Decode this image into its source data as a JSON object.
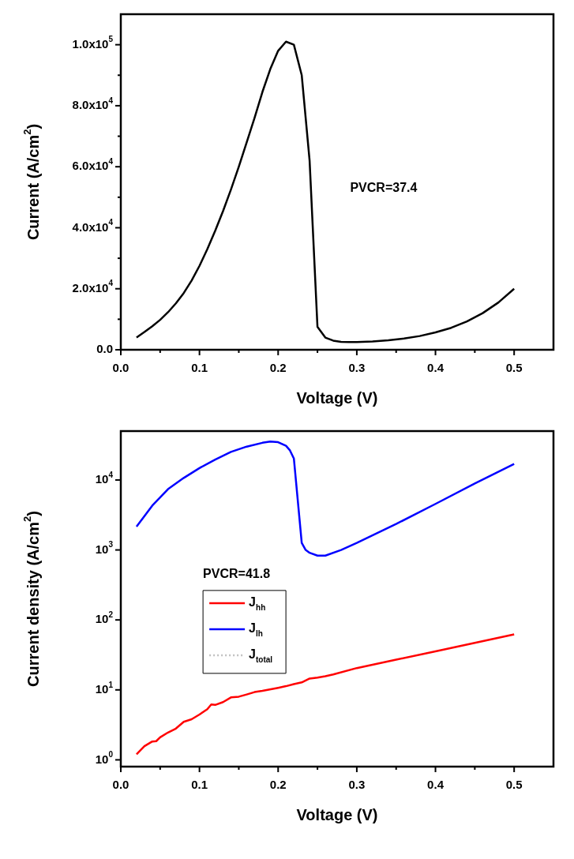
{
  "chart_data": [
    {
      "type": "line",
      "xlabel": "Voltage (V)",
      "ylabel": "Current (A/cm$^{2}$)",
      "annotations": [
        "PVCR=37.4"
      ],
      "x": [
        0.02,
        0.03,
        0.04,
        0.05,
        0.06,
        0.07,
        0.08,
        0.09,
        0.1,
        0.11,
        0.12,
        0.13,
        0.14,
        0.15,
        0.16,
        0.17,
        0.18,
        0.19,
        0.2,
        0.21,
        0.22,
        0.23,
        0.24,
        0.25,
        0.26,
        0.27,
        0.28,
        0.29,
        0.3,
        0.32,
        0.34,
        0.36,
        0.38,
        0.4,
        0.42,
        0.44,
        0.46,
        0.48,
        0.5
      ],
      "series": [
        {
          "color": "#000000",
          "values": [
            4000,
            5800,
            7700,
            9800,
            12300,
            15200,
            18600,
            22700,
            27500,
            33000,
            39000,
            45500,
            52500,
            60000,
            68000,
            76000,
            84500,
            92000,
            98000,
            101000,
            100000,
            90000,
            62000,
            7500,
            4000,
            3000,
            2600,
            2500,
            2500,
            2700,
            3100,
            3700,
            4500,
            5700,
            7200,
            9300,
            12000,
            15500,
            20000
          ]
        }
      ],
      "xlim": [
        0,
        0.55
      ],
      "xticks": [
        {
          "value": 0,
          "label": "0.0"
        },
        {
          "value": 0.05,
          "label": null
        },
        0.1,
        {
          "value": 0.15,
          "label": null
        },
        0.2,
        {
          "value": 0.25,
          "label": null
        },
        0.3,
        {
          "value": 0.35,
          "label": null
        },
        0.4,
        {
          "value": 0.45,
          "label": null
        },
        0.5
      ],
      "ylim": [
        0,
        110000
      ],
      "yticks": [
        {
          "value": 0,
          "label": "0.0"
        },
        {
          "value": 10000,
          "label": null
        },
        {
          "value": 20000,
          "label": "2.0x10$^{4}$"
        },
        {
          "value": 30000,
          "label": null
        },
        {
          "value": 40000,
          "label": "4.0x10$^{4}$"
        },
        {
          "value": 50000,
          "label": null
        },
        {
          "value": 60000,
          "label": "6.0x10$^{4}$"
        },
        {
          "value": 70000,
          "label": null
        },
        {
          "value": 80000,
          "label": "8.0x10$^{4}$"
        },
        {
          "value": 90000,
          "label": null
        },
        {
          "value": 100000,
          "label": "1.0x10$^{5}$"
        }
      ]
    },
    {
      "type": "line",
      "xlabel": "Voltage (V)",
      "ylabel": "Current density (A/cm$^{2}$)",
      "annotations": [
        "PVCR=41.8"
      ],
      "log": "y",
      "legend": "left",
      "series": [
        {
          "name": "J$_{hh}$",
          "color": "#ff0000",
          "x": [
            0.02,
            0.03,
            0.04,
            0.045,
            0.05,
            0.06,
            0.07,
            0.08,
            0.09,
            0.1,
            0.11,
            0.115,
            0.12,
            0.13,
            0.14,
            0.15,
            0.16,
            0.17,
            0.18,
            0.2,
            0.21,
            0.22,
            0.23,
            0.24,
            0.25,
            0.26,
            0.27,
            0.3,
            0.35,
            0.4,
            0.45,
            0.5
          ],
          "values": [
            1.2,
            1.57,
            1.83,
            1.85,
            2.1,
            2.46,
            2.8,
            3.5,
            3.8,
            4.45,
            5.3,
            6.2,
            6.1,
            6.7,
            7.8,
            8,
            8.6,
            9.3,
            9.7,
            10.7,
            11.3,
            12.1,
            12.8,
            14.5,
            15,
            15.7,
            16.6,
            20.5,
            27,
            35.6,
            47,
            62
          ]
        },
        {
          "name": "J$_{lh}$",
          "color": "#0000ff",
          "x": [
            0.02,
            0.04,
            0.06,
            0.08,
            0.1,
            0.12,
            0.14,
            0.16,
            0.18,
            0.19,
            0.2,
            0.21,
            0.215,
            0.22,
            0.23,
            0.235,
            0.24,
            0.25,
            0.26,
            0.28,
            0.3,
            0.35,
            0.4,
            0.45,
            0.5
          ],
          "values": [
            2150,
            4300,
            7400,
            10700,
            14800,
            19600,
            25200,
            30000,
            34000,
            35400,
            34700,
            30800,
            26500,
            20300,
            1260,
            1000,
            910,
            830,
            830,
            1000,
            1260,
            2350,
            4550,
            8900,
            17000
          ]
        },
        {
          "name": "J$_{total}$",
          "color": "#c0c0c0",
          "line_style": "dotted"
        }
      ],
      "xlim": [
        0,
        0.55
      ],
      "xticks": [
        {
          "value": 0,
          "label": "0.0"
        },
        {
          "value": 0.05,
          "label": null
        },
        0.1,
        {
          "value": 0.15,
          "label": null
        },
        0.2,
        {
          "value": 0.25,
          "label": null
        },
        0.3,
        {
          "value": 0.35,
          "label": null
        },
        0.4,
        {
          "value": 0.45,
          "label": null
        },
        0.5
      ],
      "ylim": [
        0.8,
        50000
      ],
      "yticks": [
        {
          "value": 1,
          "label": "10$^{0}$"
        },
        {
          "value": 10,
          "label": "10$^{1}$"
        },
        {
          "value": 100,
          "label": "10$^{2}$"
        },
        {
          "value": 1000,
          "label": "10$^{3}$"
        },
        {
          "value": 10000,
          "label": "10$^{4}$"
        }
      ]
    }
  ]
}
